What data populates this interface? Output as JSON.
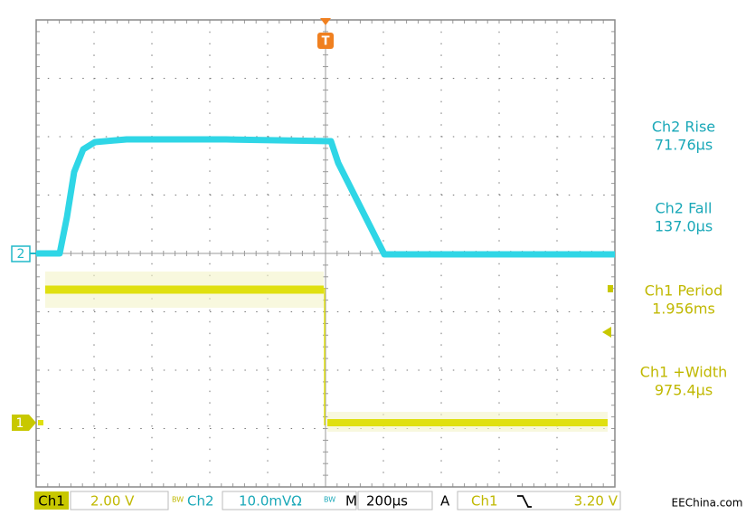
{
  "markers": {
    "trigger": "T",
    "ch2": "2",
    "ch1": "1"
  },
  "measurements": [
    {
      "label": "Ch2 Rise",
      "value": "71.76µs"
    },
    {
      "label": "Ch2 Fall",
      "value": "137.0µs"
    },
    {
      "label": "Ch1 Period",
      "value": "1.956ms"
    },
    {
      "label": "Ch1 +Width",
      "value": "975.4µs"
    }
  ],
  "status_bar": {
    "ch1_label": "Ch1",
    "ch1_scale": "2.00 V",
    "bw": "BW",
    "ch2_label": "Ch2",
    "ch2_scale": "10.0mVΩ",
    "timebase_label": "M",
    "timebase": "200µs",
    "trigger_mode": "A",
    "trigger_source": "Ch1",
    "trigger_level": "3.20 V"
  },
  "watermark": "EEChina.com"
}
